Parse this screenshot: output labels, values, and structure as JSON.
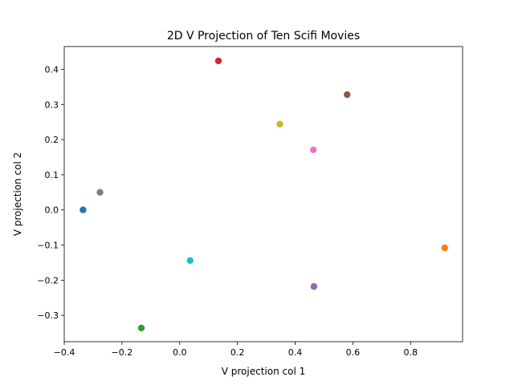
{
  "chart_data": {
    "type": "scatter",
    "title": "2D V Projection of Ten Scifi Movies",
    "xlabel": "V projection col 1",
    "ylabel": "V projection col 2",
    "xlim": [
      -0.4,
      0.98
    ],
    "ylim": [
      -0.375,
      0.465
    ],
    "xticks": [
      -0.4,
      -0.2,
      0.0,
      0.2,
      0.4,
      0.6,
      0.8
    ],
    "xtick_labels": [
      "−0.4",
      "−0.2",
      "0.0",
      "0.2",
      "0.4",
      "0.6",
      "0.8"
    ],
    "yticks": [
      -0.3,
      -0.2,
      -0.1,
      0.0,
      0.1,
      0.2,
      0.3,
      0.4
    ],
    "ytick_labels": [
      "−0.3",
      "−0.2",
      "−0.1",
      "0.0",
      "0.1",
      "0.2",
      "0.3",
      "0.4"
    ],
    "grid": false,
    "points": [
      {
        "x": -0.335,
        "y": 0.0,
        "color": "#1f77b4"
      },
      {
        "x": 0.918,
        "y": -0.108,
        "color": "#ff7f0e"
      },
      {
        "x": -0.133,
        "y": -0.336,
        "color": "#2ca02c"
      },
      {
        "x": 0.134,
        "y": 0.424,
        "color": "#d62728"
      },
      {
        "x": 0.465,
        "y": -0.218,
        "color": "#9467bd"
      },
      {
        "x": 0.58,
        "y": 0.328,
        "color": "#8c564b"
      },
      {
        "x": 0.463,
        "y": 0.171,
        "color": "#e377c2"
      },
      {
        "x": -0.276,
        "y": 0.05,
        "color": "#7f7f7f"
      },
      {
        "x": 0.347,
        "y": 0.244,
        "color": "#bcbd22"
      },
      {
        "x": 0.036,
        "y": -0.144,
        "color": "#17becf"
      }
    ]
  }
}
